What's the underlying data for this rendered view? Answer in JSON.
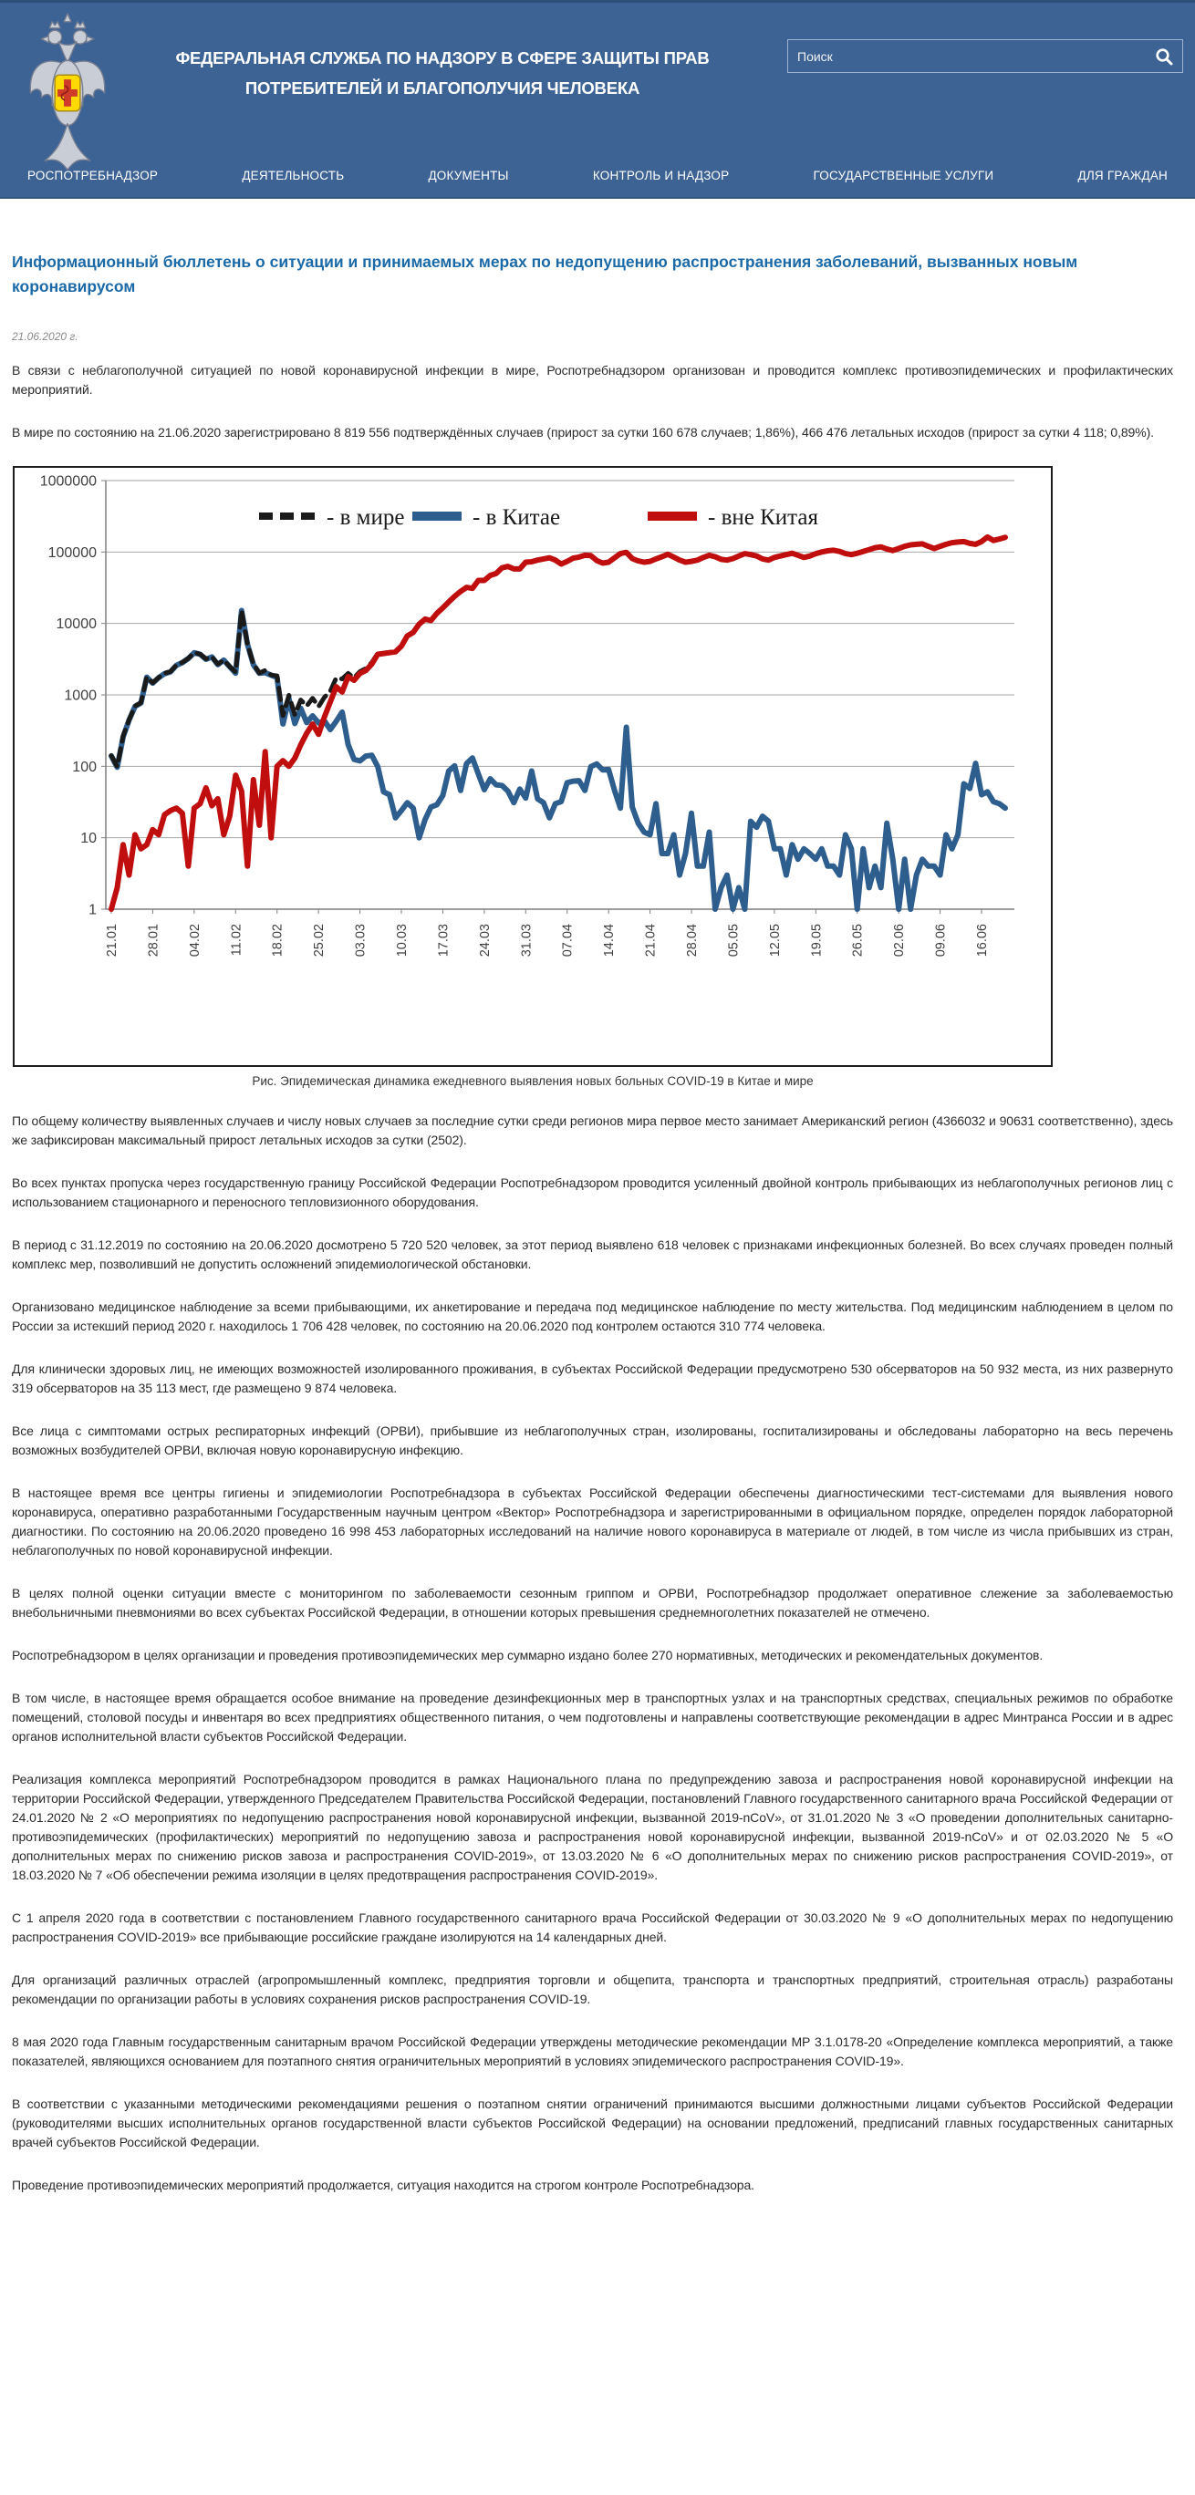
{
  "header": {
    "org_name_line1": "ФЕДЕРАЛЬНАЯ СЛУЖБА ПО НАДЗОРУ В СФЕРЕ ЗАЩИТЫ ПРАВ",
    "org_name_line2": "ПОТРЕБИТЕЛЕЙ И БЛАГОПОЛУЧИЯ ЧЕЛОВЕКА",
    "search_placeholder": "Поиск",
    "nav": [
      "РОСПОТРЕБНАДЗОР",
      "ДЕЯТЕЛЬНОСТЬ",
      "ДОКУМЕНТЫ",
      "КОНТРОЛЬ И НАДЗОР",
      "ГОСУДАРСТВЕННЫЕ УСЛУГИ",
      "ДЛЯ ГРАЖДАН"
    ],
    "colors": {
      "background": "#3c6394",
      "text": "#ffffff"
    }
  },
  "article": {
    "title": "Информационный бюллетень о ситуации и принимаемых мерах по недопущению распространения заболеваний, вызванных новым коронавирусом",
    "date": "21.06.2020 г.",
    "title_color": "#1b6aa7",
    "paragraphs_before_chart": [
      "В связи с неблагополучной ситуацией по новой коронавирусной инфекции в мире, Роспотребнадзором организован и проводится комплекс противоэпидемических и профилактических мероприятий.",
      "В мире по состоянию на 21.06.2020 зарегистрировано 8 819 556 подтверждённых случаев (прирост за сутки 160 678 случаев; 1,86%), 466 476 летальных исходов (прирост за сутки 4 118; 0,89%)."
    ],
    "chart_caption": "Рис. Эпидемическая динамика ежедневного выявления новых больных COVID-19 в Китае и мире",
    "paragraphs_after_chart": [
      "По общему количеству выявленных случаев и числу новых случаев за последние сутки среди регионов мира первое место занимает Американский регион (4366032 и 90631 соответственно), здесь же зафиксирован максимальный прирост летальных исходов за сутки (2502).",
      "Во всех пунктах пропуска через государственную границу Российской Федерации Роспотребнадзором проводится усиленный двойной контроль прибывающих из неблагополучных регионов лиц с использованием стационарного и переносного тепловизионного оборудования.",
      "В период с 31.12.2019 по состоянию на 20.06.2020 досмотрено 5 720 520 человек, за этот период выявлено 618 человек с признаками инфекционных болезней. Во всех случаях проведен полный комплекс мер, позволивший не допустить осложнений эпидемиологической обстановки.",
      "Организовано медицинское наблюдение за всеми прибывающими, их анкетирование и передача под медицинское наблюдение по месту жительства. Под медицинским наблюдением в целом по России за истекший период 2020 г. находилось 1 706 428 человек, по состоянию на 20.06.2020 под контролем остаются 310 774 человека.",
      "Для клинически здоровых лиц, не имеющих возможностей изолированного проживания, в субъектах Российской Федерации предусмотрено 530 обсерваторов на 50 932 места, из них развернуто 319 обсерваторов на 35 113 мест, где размещено 9 874 человека.",
      "Все лица с симптомами острых респираторных инфекций (ОРВИ), прибывшие из неблагополучных стран, изолированы, госпитализированы и обследованы лабораторно на весь перечень возможных возбудителей ОРВИ, включая новую коронавирусную инфекцию.",
      "В настоящее время все центры гигиены и эпидемиологии Роспотребнадзора в субъектах Российской Федерации обеспечены диагностическими тест-системами для выявления нового коронавируса, оперативно разработанными Государственным научным центром «Вектор» Роспотребнадзора и зарегистрированными в официальном порядке, определен порядок лабораторной диагностики. По состоянию на 20.06.2020 проведено 16 998 453 лабораторных исследований на наличие нового коронавируса в материале от людей, в том числе из числа прибывших из стран, неблагополучных по новой коронавирусной инфекции.",
      "В целях полной оценки ситуации вместе с мониторингом по заболеваемости сезонным гриппом и ОРВИ, Роспотребнадзор продолжает оперативное слежение за заболеваемостью внебольничными пневмониями во всех субъектах Российской Федерации, в отношении которых превышения среднемноголетних показателей не отмечено.",
      "Роспотребнадзором в целях организации и проведения противоэпидемических мер суммарно издано более 270 нормативных, методических и рекомендательных документов.",
      "В том числе, в настоящее время обращается особое внимание на проведение дезинфекционных мер в транспортных узлах и на транспортных средствах, специальных режимов по обработке помещений, столовой посуды и инвентаря во всех предприятиях общественного питания, о чем подготовлены и направлены соответствующие рекомендации в адрес Минтранса России и в адрес органов исполнительной власти субъектов Российской Федерации.",
      "Реализация комплекса мероприятий Роспотребнадзором проводится в рамках Национального плана по предупреждению завоза и распространения новой коронавирусной инфекции на территории Российской Федерации, утвержденного Председателем Правительства Российской Федерации, постановлений Главного государственного санитарного врача Российской Федерации от 24.01.2020 № 2 «О мероприятиях по недопущению распространения новой коронавирусной инфекции, вызванной 2019-nCoV», от 31.01.2020 № 3 «О проведении дополнительных санитарно-противоэпидемических (профилактических) мероприятий по недопущению завоза и распространения новой коронавирусной инфекции, вызванной 2019-nCoV» и от 02.03.2020 № 5 «О дополнительных мерах по снижению рисков завоза и распространения COVID-2019», от 13.03.2020 № 6 «О дополнительных мерах по снижению рисков распространения COVID-2019», от 18.03.2020 № 7 «Об обеспечении режима изоляции в целях предотвращения распространения COVID-2019».",
      "С 1 апреля 2020 года в соответствии с постановлением Главного государственного санитарного врача Российской Федерации от 30.03.2020 № 9 «О дополнительных мерах по недопущению распространения COVID-2019» все прибывающие российские граждане изолируются на 14 календарных дней.",
      "Для организаций различных отраслей (агропромышленный комплекс, предприятия торговли и общепита, транспорта и транспортных предприятий, строительная отрасль) разработаны рекомендации по организации работы в условиях сохранения рисков распространения COVID-19.",
      "8 мая 2020 года Главным государственным санитарным врачом Российской Федерации утверждены методические рекомендации МР 3.1.0178-20 «Определение комплекса мероприятий, а также показателей, являющихся основанием для поэтапного снятия ограничительных мероприятий в условиях эпидемического распространения COVID-19».",
      "В соответствии с указанными методическими рекомендациями решения о поэтапном снятии ограничений принимаются высшими должностными лицами субъектов Российской Федерации (руководителями высших исполнительных органов государственной власти субъектов Российской Федерации) на основании предложений, предписаний главных государственных санитарных врачей субъектов Российской Федерации.",
      "Проведение противоэпидемических мероприятий продолжается, ситуация находится на строгом контроле Роспотребнадзора."
    ]
  },
  "chart_data": {
    "type": "line",
    "y_scale": "log",
    "ylim": [
      1,
      1000000
    ],
    "grid": true,
    "legend_position": "top-center",
    "y_ticks": [
      "1",
      "10",
      "100",
      "1000",
      "10000",
      "100000",
      "1000000"
    ],
    "x_tick_interval_days": 7,
    "x_tick_labels": [
      "21.01",
      "28.01",
      "04.02",
      "11.02",
      "18.02",
      "25.02",
      "03.03",
      "10.03",
      "17.03",
      "24.03",
      "31.03",
      "07.04",
      "14.04",
      "21.04",
      "28.04",
      "05.05",
      "12.05",
      "19.05",
      "26.05",
      "02.06",
      "09.06",
      "16.06"
    ],
    "x_start_date": "21.01",
    "x_end_date": "20.06",
    "series": [
      {
        "name": "- в мире",
        "color": "#1a1a1a",
        "style": "dashed",
        "values": [
          141,
          99,
          267,
          447,
          699,
          776,
          1779,
          1472,
          1748,
          2003,
          2126,
          2616,
          2851,
          3239,
          3913,
          3724,
          3193,
          3427,
          2691,
          3073,
          2498,
          2090,
          15197,
          5094,
          2706,
          2024,
          2208,
          1896,
          1849,
          511,
          989,
          527,
          848,
          699,
          898,
          686,
          923,
          1127,
          1727,
          1673,
          2002,
          1725,
          2119,
          2339,
          2843,
          3799,
          3844,
          3940,
          4019,
          4824,
          6731,
          7526,
          9810,
          11518,
          11027,
          13929,
          16539,
          20086,
          24102,
          28046,
          32109,
          31131,
          40078,
          40047,
          47067,
          50055,
          60054,
          63045,
          58031,
          58048,
          72036,
          73086,
          77035,
          80031,
          83019,
          77030,
          68032,
          74059,
          82062,
          85063,
          90046,
          89099,
          76108,
          70089,
          72090,
          83046,
          95026,
          99352,
          81027,
          75016,
          72012,
          74011,
          80030,
          86006,
          93006,
          85011,
          77003,
          72006,
          74022,
          77004,
          84004,
          90012,
          86001,
          79002,
          77003,
          81001,
          88002,
          95001,
          92017,
          88014,
          80020,
          77017,
          84007,
          88007,
          92003,
          96008,
          90005,
          84007,
          88006,
          95005,
          100007,
          104004,
          106004,
          102003,
          95011,
          92007,
          96001,
          102007,
          108002,
          115004,
          118002,
          110016,
          105005,
          112001,
          120005,
          126001,
          128003,
          130005,
          120004,
          112004,
          120003,
          128011,
          135007,
          138011,
          140057,
          132049,
          128110,
          140040,
          162044,
          145032,
          152030,
          160678
        ]
      },
      {
        "name": "-  в Китае",
        "color": "#2e5e8e",
        "style": "solid",
        "values": [
          140,
          97,
          259,
          444,
          688,
          769,
          1771,
          1459,
          1737,
          1982,
          2102,
          2590,
          2829,
          3235,
          3887,
          3694,
          3143,
          3399,
          2656,
          3062,
          2478,
          2015,
          15152,
          5090,
          2641,
          2009,
          2048,
          1886,
          1749,
          391,
          889,
          397,
          648,
          409,
          508,
          406,
          433,
          327,
          427,
          573,
          202,
          125,
          119,
          139,
          143,
          99,
          44,
          40,
          19,
          24,
          31,
          26,
          10,
          18,
          27,
          29,
          39,
          86,
          102,
          46,
          109,
          131,
          78,
          47,
          67,
          55,
          54,
          45,
          31,
          48,
          36,
          86,
          35,
          31,
          19,
          30,
          32,
          59,
          62,
          63,
          46,
          99,
          108,
          89,
          90,
          46,
          26,
          352,
          27,
          16,
          12,
          11,
          30,
          6,
          6,
          11,
          3,
          6,
          22,
          4,
          4,
          12,
          1,
          2,
          3,
          1,
          2,
          1,
          17,
          14,
          20,
          17,
          7,
          7,
          3,
          8,
          5,
          7,
          6,
          5,
          7,
          4,
          4,
          3,
          11,
          7,
          1,
          7,
          2,
          4,
          2,
          16,
          5,
          1,
          5,
          1,
          3,
          5,
          4,
          4,
          3,
          11,
          7,
          11,
          57,
          49,
          110,
          40,
          44,
          32,
          30,
          26
        ]
      },
      {
        "name": "- вне Китая",
        "color": "#c00d0d",
        "style": "solid",
        "values": [
          1,
          2,
          8,
          3,
          11,
          7,
          8,
          13,
          11,
          21,
          24,
          26,
          22,
          4,
          26,
          30,
          50,
          28,
          35,
          11,
          20,
          75,
          45,
          4,
          65,
          15,
          160,
          10,
          100,
          120,
          100,
          130,
          200,
          290,
          390,
          280,
          490,
          800,
          1300,
          1100,
          1800,
          1600,
          2000,
          2200,
          2700,
          3700,
          3800,
          3900,
          4000,
          4800,
          6700,
          7500,
          9800,
          11500,
          11000,
          13900,
          16500,
          20000,
          24000,
          28000,
          32000,
          31000,
          40000,
          40000,
          47000,
          50000,
          60000,
          63000,
          58000,
          58000,
          72000,
          73000,
          77000,
          80000,
          83000,
          77000,
          68000,
          74000,
          82000,
          85000,
          90000,
          89000,
          76000,
          70000,
          72000,
          83000,
          95000,
          99000,
          81000,
          75000,
          72000,
          74000,
          80000,
          86000,
          93000,
          85000,
          77000,
          72000,
          74000,
          77000,
          84000,
          90000,
          86000,
          79000,
          77000,
          81000,
          88000,
          95000,
          92000,
          88000,
          80000,
          77000,
          84000,
          88000,
          92000,
          96000,
          90000,
          84000,
          88000,
          95000,
          100000,
          104000,
          106000,
          102000,
          95000,
          92000,
          96000,
          102000,
          108000,
          115000,
          118000,
          110000,
          105000,
          112000,
          120000,
          126000,
          128000,
          130000,
          120000,
          112000,
          120000,
          128000,
          135000,
          138000,
          140000,
          132000,
          128000,
          140000,
          162000,
          145000,
          152000,
          160652
        ]
      }
    ]
  }
}
